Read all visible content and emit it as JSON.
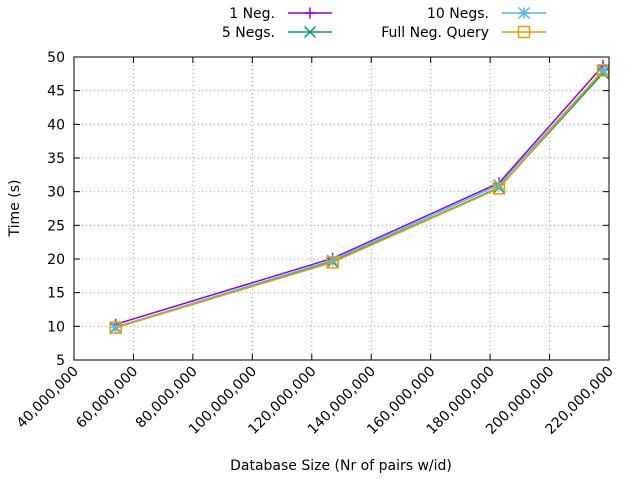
{
  "chart_data": {
    "type": "line",
    "title": "",
    "xlabel": "Database Size (Nr of pairs w/id)",
    "ylabel": "Time (s)",
    "xlim": [
      40000000,
      220000000
    ],
    "ylim": [
      5,
      50
    ],
    "grid": true,
    "legend_position": "top",
    "x_ticks": [
      {
        "value": 40000000,
        "label": "40,000,000"
      },
      {
        "value": 60000000,
        "label": "60,000,000"
      },
      {
        "value": 80000000,
        "label": "80,000,000"
      },
      {
        "value": 100000000,
        "label": "100,000,000"
      },
      {
        "value": 120000000,
        "label": "120,000,000"
      },
      {
        "value": 140000000,
        "label": "140,000,000"
      },
      {
        "value": 160000000,
        "label": "160,000,000"
      },
      {
        "value": 180000000,
        "label": "180,000,000"
      },
      {
        "value": 200000000,
        "label": "200,000,000"
      },
      {
        "value": 220000000,
        "label": "220,000,000"
      }
    ],
    "y_ticks": [
      {
        "value": 5,
        "label": "5"
      },
      {
        "value": 10,
        "label": "10"
      },
      {
        "value": 15,
        "label": "15"
      },
      {
        "value": 20,
        "label": "20"
      },
      {
        "value": 25,
        "label": "25"
      },
      {
        "value": 30,
        "label": "30"
      },
      {
        "value": 35,
        "label": "35"
      },
      {
        "value": 40,
        "label": "40"
      },
      {
        "value": 45,
        "label": "45"
      },
      {
        "value": 50,
        "label": "50"
      }
    ],
    "x": [
      54000000,
      127000000,
      183000000,
      218000000
    ],
    "series": [
      {
        "name": "1 Neg.",
        "color": "#9400d3",
        "marker": "plus",
        "values": [
          10.3,
          20.1,
          31.3,
          48.7
        ]
      },
      {
        "name": "5 Negs.",
        "color": "#009e73",
        "marker": "cross",
        "values": [
          9.8,
          19.6,
          30.6,
          47.6
        ]
      },
      {
        "name": "10 Negs.",
        "color": "#56b4e9",
        "marker": "star",
        "values": [
          9.9,
          19.8,
          31.0,
          48.0
        ]
      },
      {
        "name": "Full Neg. Query",
        "color": "#e69f00",
        "marker": "square",
        "values": [
          9.8,
          19.5,
          30.5,
          48.0
        ]
      }
    ]
  }
}
